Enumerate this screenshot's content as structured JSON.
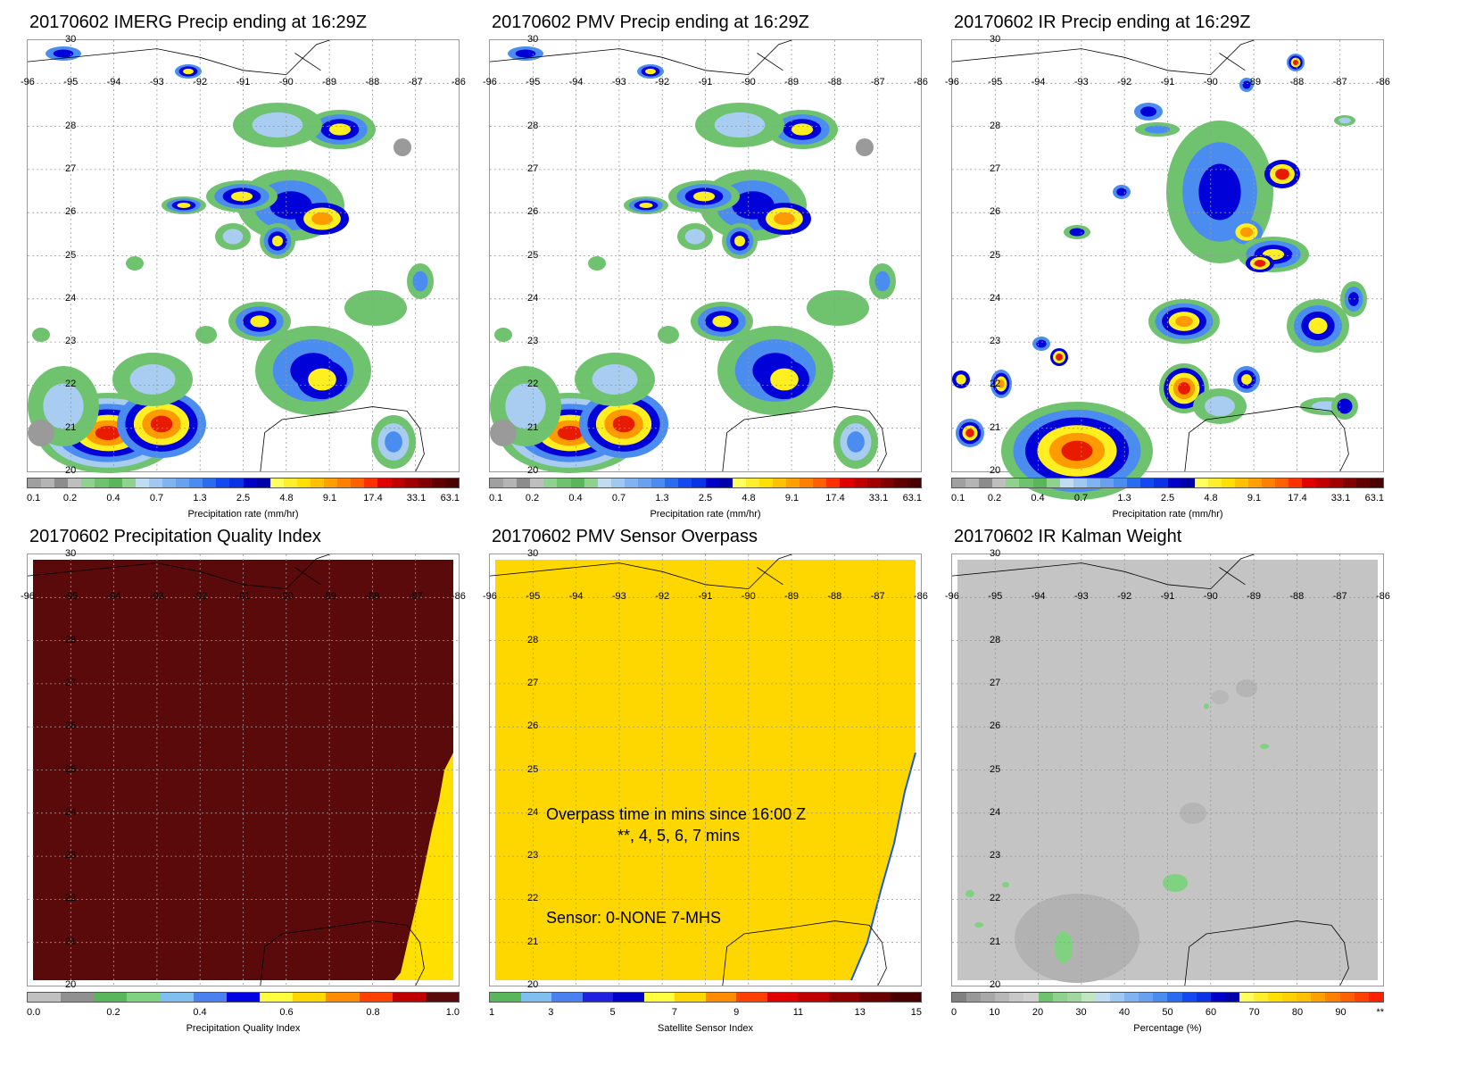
{
  "panels": [
    {
      "id": "p1",
      "title": "20170602 IMERG Precip ending at 16:29Z",
      "colorbar_label": "Precipitation rate (mm/hr)",
      "colorbar": "precip"
    },
    {
      "id": "p2",
      "title": "20170602 PMV Precip ending at 16:29Z",
      "colorbar_label": "Precipitation rate (mm/hr)",
      "colorbar": "precip"
    },
    {
      "id": "p3",
      "title": "20170602 IR Precip ending at 16:29Z",
      "colorbar_label": "Precipitation rate (mm/hr)",
      "colorbar": "precip"
    },
    {
      "id": "p4",
      "title": "20170602 Precipitation Quality Index",
      "colorbar_label": "Precipitation Quality Index",
      "colorbar": "pqi"
    },
    {
      "id": "p5",
      "title": "20170602 PMV Sensor Overpass",
      "colorbar_label": "Satellite Sensor Index",
      "colorbar": "sensor",
      "overlay_line1": "Overpass time in mins since 16:00 Z",
      "overlay_line2": "**, 4, 5, 6, 7 mins",
      "overlay_line3": "Sensor:   0-NONE  7-MHS"
    },
    {
      "id": "p6",
      "title": "20170602 IR Kalman Weight",
      "colorbar_label": "Percentage (%)",
      "colorbar": "percent"
    }
  ],
  "map": {
    "lat_labels": [
      "30",
      "28",
      "27",
      "26",
      "25",
      "24",
      "23",
      "22",
      "21",
      "20"
    ],
    "lon_labels": [
      "-96",
      "-95",
      "-94",
      "-93",
      "-92",
      "-91",
      "-90",
      "-89",
      "-88",
      "-87",
      "-86"
    ]
  },
  "colorbars": {
    "precip": {
      "ticks": [
        "0.1",
        "0.2",
        "0.4",
        "0.7",
        "1.3",
        "2.5",
        "4.8",
        "9.1",
        "17.4",
        "33.1",
        "63.1"
      ],
      "colors": [
        "#a0a0a0",
        "#b4b4b4",
        "#8c8c8c",
        "#bebebe",
        "#8fd18f",
        "#6fc36f",
        "#5ab65a",
        "#8fd18f",
        "#c0dcf0",
        "#a0c8f0",
        "#80b4f0",
        "#6aa0f0",
        "#4a8cf0",
        "#2a6cf0",
        "#1448f0",
        "#0a32e6",
        "#0000c8",
        "#0000aa",
        "#ffff60",
        "#ffee30",
        "#ffe000",
        "#ffc000",
        "#ffa000",
        "#ff8000",
        "#ff6000",
        "#ff3000",
        "#e00000",
        "#c00000",
        "#a00000",
        "#800000",
        "#600000",
        "#4a0000"
      ],
      "colors_note": "precip rate palette"
    },
    "pqi": {
      "ticks": [
        "0.0",
        "0.2",
        "0.4",
        "0.6",
        "0.8",
        "1.0"
      ],
      "colors": [
        "#c0c0c0",
        "#909090",
        "#5ab65a",
        "#7fd27f",
        "#80c0f0",
        "#4a80f0",
        "#0000e0",
        "#ffff40",
        "#ffd700",
        "#ff8c00",
        "#ff4000",
        "#c00000",
        "#5a0a0a"
      ]
    },
    "sensor": {
      "ticks": [
        "1",
        "3",
        "5",
        "7",
        "9",
        "11",
        "13",
        "15"
      ],
      "colors": [
        "#5ab65a",
        "#80c0f0",
        "#4a80f0",
        "#2020e0",
        "#0000c8",
        "#ffff40",
        "#ffd700",
        "#ff8c00",
        "#ff4000",
        "#e00000",
        "#c00000",
        "#900000",
        "#6a0000",
        "#4a0000"
      ]
    },
    "percent": {
      "ticks": [
        "0",
        "10",
        "20",
        "30",
        "40",
        "50",
        "60",
        "70",
        "80",
        "90",
        "**"
      ],
      "colors": [
        "#808080",
        "#989898",
        "#a8a8a8",
        "#b8b8b8",
        "#c8c8c8",
        "#d0d0d0",
        "#6fc36f",
        "#8fd18f",
        "#a0d8a0",
        "#c0e8c0",
        "#c0dcf0",
        "#a0c8f0",
        "#80b4f0",
        "#6aa0f0",
        "#4a8cf0",
        "#2a6cf0",
        "#1448f0",
        "#0a32e6",
        "#0000c8",
        "#0000aa",
        "#ffff60",
        "#ffee30",
        "#ffe000",
        "#ffd000",
        "#ffc000",
        "#ffa000",
        "#ff8000",
        "#ff6000",
        "#ff4000",
        "#ff2000"
      ]
    }
  }
}
